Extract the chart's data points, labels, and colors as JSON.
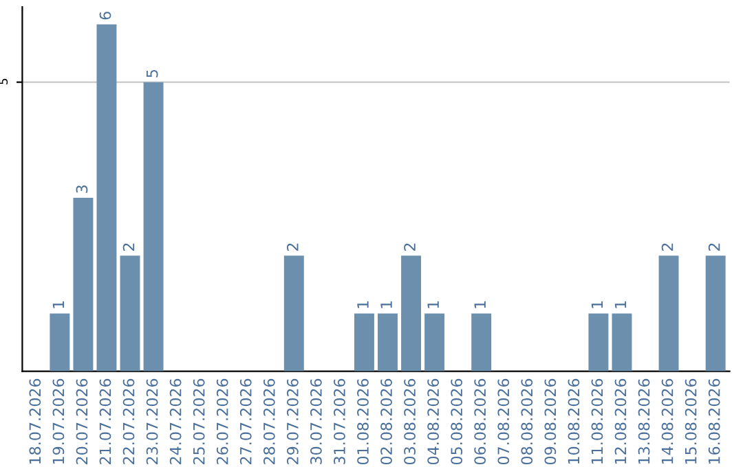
{
  "chart_data": {
    "type": "bar",
    "categories": [
      "18.07.2026",
      "19.07.2026",
      "20.07.2026",
      "21.07.2026",
      "22.07.2026",
      "23.07.2026",
      "24.07.2026",
      "25.07.2026",
      "26.07.2026",
      "27.07.2026",
      "28.07.2026",
      "29.07.2026",
      "30.07.2026",
      "31.07.2026",
      "01.08.2026",
      "02.08.2026",
      "03.08.2026",
      "04.08.2026",
      "05.08.2026",
      "06.08.2026",
      "07.08.2026",
      "08.08.2026",
      "09.08.2026",
      "10.08.2026",
      "11.08.2026",
      "12.08.2026",
      "13.08.2026",
      "14.08.2026",
      "15.08.2026",
      "16.08.2026"
    ],
    "values": [
      0,
      1,
      3,
      6,
      2,
      5,
      0,
      0,
      0,
      0,
      0,
      2,
      0,
      0,
      1,
      1,
      2,
      1,
      0,
      1,
      0,
      0,
      0,
      0,
      1,
      1,
      0,
      2,
      0,
      2
    ],
    "value_labels": [
      null,
      "1",
      "3",
      "6",
      "2",
      "5",
      null,
      null,
      null,
      null,
      null,
      "2",
      null,
      null,
      "1",
      "1",
      "2",
      "1",
      null,
      "1",
      null,
      null,
      null,
      null,
      "1",
      "1",
      null,
      "2",
      null,
      "2"
    ],
    "color": "#6d8fae",
    "ylim": [
      0,
      6.3
    ],
    "yticks": [
      5
    ],
    "grid": "y"
  }
}
